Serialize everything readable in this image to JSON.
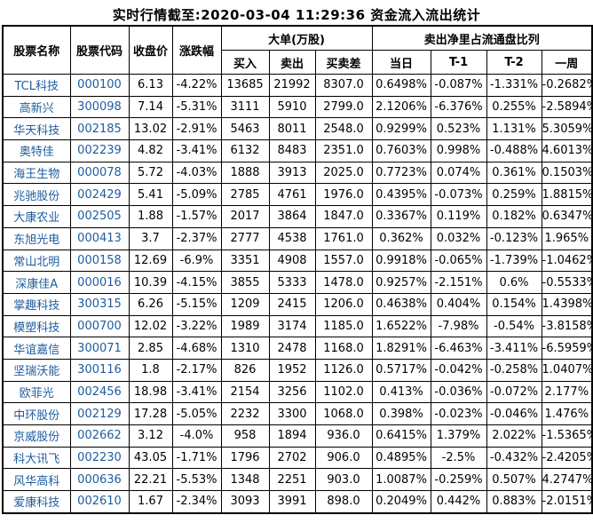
{
  "title": "实时行情截至:2020-03-04 11:29:36 资金流入流出统计",
  "colors": {
    "link_blue": "#1d5c9e",
    "border": "#000000",
    "background": "#ffffff",
    "text": "#000000"
  },
  "table": {
    "col_headers": {
      "stock_name": "股票名称",
      "stock_code": "股票代码",
      "close_price": "收盘价",
      "change_pct": "涨跌幅",
      "big_order_group": "大单(万股)",
      "buy": "买入",
      "sell": "卖出",
      "buy_sell_diff": "买卖差",
      "net_sell_group": "卖出净里占流通盘比列",
      "day": "当日",
      "t1": "T-1",
      "t2": "T-2",
      "week": "一周"
    },
    "rows": [
      [
        "TCL科技",
        "000100",
        "6.13",
        "-4.22%",
        "13685",
        "21992",
        "8307.0",
        "0.6498%",
        "-0.087%",
        "-1.331%",
        "-0.2682%"
      ],
      [
        "高新兴",
        "300098",
        "7.14",
        "-5.31%",
        "3111",
        "5910",
        "2799.0",
        "2.1206%",
        "-6.376%",
        "0.255%",
        "-2.5894%"
      ],
      [
        "华天科技",
        "002185",
        "13.02",
        "-2.91%",
        "5463",
        "8011",
        "2548.0",
        "0.9299%",
        "0.523%",
        "1.131%",
        "5.3059%"
      ],
      [
        "奥特佳",
        "002239",
        "4.82",
        "-3.41%",
        "6132",
        "8483",
        "2351.0",
        "0.7603%",
        "0.998%",
        "-0.488%",
        "4.6013%"
      ],
      [
        "海王生物",
        "000078",
        "5.72",
        "-4.03%",
        "1888",
        "3913",
        "2025.0",
        "0.7723%",
        "0.074%",
        "0.361%",
        "0.1503%"
      ],
      [
        "兆驰股份",
        "002429",
        "5.41",
        "-5.09%",
        "2785",
        "4761",
        "1976.0",
        "0.4395%",
        "-0.073%",
        "0.259%",
        "1.8815%"
      ],
      [
        "大康农业",
        "002505",
        "1.88",
        "-1.57%",
        "2017",
        "3864",
        "1847.0",
        "0.3367%",
        "0.119%",
        "0.182%",
        "0.6347%"
      ],
      [
        "东旭光电",
        "000413",
        "3.7",
        "-2.37%",
        "2777",
        "4538",
        "1761.0",
        "0.362%",
        "0.032%",
        "-0.123%",
        "1.965%"
      ],
      [
        "常山北明",
        "000158",
        "12.69",
        "-6.9%",
        "3351",
        "4908",
        "1557.0",
        "0.9918%",
        "-0.065%",
        "-1.739%",
        "-1.0462%"
      ],
      [
        "深康佳A",
        "000016",
        "10.39",
        "-4.15%",
        "3855",
        "5333",
        "1478.0",
        "0.9257%",
        "-2.151%",
        "0.6%",
        "-0.5533%"
      ],
      [
        "掌趣科技",
        "300315",
        "6.26",
        "-5.15%",
        "1209",
        "2415",
        "1206.0",
        "0.4638%",
        "0.404%",
        "0.154%",
        "1.4398%"
      ],
      [
        "模塑科技",
        "000700",
        "12.02",
        "-3.22%",
        "1989",
        "3174",
        "1185.0",
        "1.6522%",
        "-7.98%",
        "-0.54%",
        "-3.8158%"
      ],
      [
        "华谊嘉信",
        "300071",
        "2.85",
        "-4.68%",
        "1310",
        "2478",
        "1168.0",
        "1.8291%",
        "-6.463%",
        "-3.411%",
        "-6.5959%"
      ],
      [
        "坚瑞沃能",
        "300116",
        "1.8",
        "-2.17%",
        "826",
        "1952",
        "1126.0",
        "0.5717%",
        "-0.042%",
        "-0.258%",
        "1.0407%"
      ],
      [
        "欧菲光",
        "002456",
        "18.98",
        "-3.41%",
        "2154",
        "3256",
        "1102.0",
        "0.413%",
        "-0.036%",
        "-0.072%",
        "2.177%"
      ],
      [
        "中环股份",
        "002129",
        "17.28",
        "-5.05%",
        "2232",
        "3300",
        "1068.0",
        "0.398%",
        "-0.023%",
        "-0.046%",
        "1.476%"
      ],
      [
        "京威股份",
        "002662",
        "3.12",
        "-4.0%",
        "958",
        "1894",
        "936.0",
        "0.6415%",
        "1.379%",
        "2.022%",
        "-1.5365%"
      ],
      [
        "科大讯飞",
        "002230",
        "43.05",
        "-1.71%",
        "1796",
        "2702",
        "906.0",
        "0.4895%",
        "-2.5%",
        "-0.432%",
        "-2.4205%"
      ],
      [
        "风华高科",
        "000636",
        "22.21",
        "-5.53%",
        "1348",
        "2251",
        "903.0",
        "1.0087%",
        "-0.259%",
        "0.507%",
        "4.2747%"
      ],
      [
        "爱康科技",
        "002610",
        "1.67",
        "-2.34%",
        "3093",
        "3991",
        "898.0",
        "0.2049%",
        "0.442%",
        "0.883%",
        "-2.0151%"
      ]
    ]
  }
}
